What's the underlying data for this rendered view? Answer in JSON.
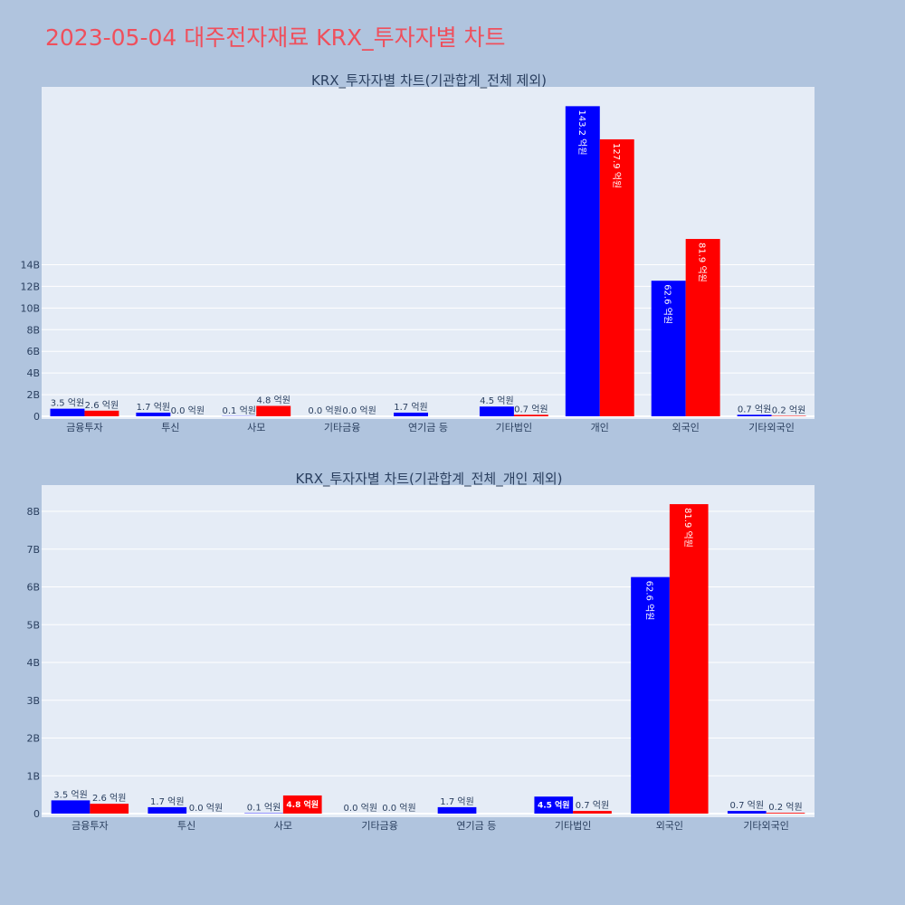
{
  "title": "2023-05-04 대주전자재료 KRX_투자자별 차트",
  "colors": {
    "buy": "#0000ff",
    "sell": "#ff0000",
    "background": "#b0c4de",
    "plot_bg": "#e5ecf6",
    "title": "#ef4f5c"
  },
  "chart_data": [
    {
      "type": "bar",
      "title": "KRX_투자자별 차트(기관합계_전체 제외)",
      "categories": [
        "금융투자",
        "투신",
        "사모",
        "기타금융",
        "연기금 등",
        "기타법인",
        "개인",
        "외국인",
        "기타외국인"
      ],
      "yticks": [
        "0",
        "2B",
        "4B",
        "6B",
        "8B",
        "10B",
        "12B",
        "14B"
      ],
      "ylim": [
        0,
        15
      ],
      "series": [
        {
          "color": "#0000ff",
          "values": [
            0.35,
            0.17,
            0.01,
            0.0,
            0.17,
            0.45,
            14.32,
            6.26,
            0.07
          ],
          "labels": [
            "3.5 억원",
            "1.7 억원",
            "0.1 억원",
            "0.0 억원",
            "1.7 억원",
            "4.5 억원",
            "143.2 억원",
            "62.6 억원",
            "0.7 억원"
          ]
        },
        {
          "color": "#ff0000",
          "values": [
            0.26,
            0.0,
            0.48,
            0.0,
            null,
            0.07,
            12.79,
            8.19,
            0.02
          ],
          "labels": [
            "2.6 억원",
            "0.0 억원",
            "4.8 억원",
            "0.0 억원",
            null,
            "0.7 억원",
            "127.9 억원",
            "81.9 억원",
            "0.2 억원"
          ]
        }
      ]
    },
    {
      "type": "bar",
      "title": "KRX_투자자별 차트(기관합계_전체_개인 제외)",
      "categories": [
        "금융투자",
        "투신",
        "사모",
        "기타금융",
        "연기금 등",
        "기타법인",
        "외국인",
        "기타외국인"
      ],
      "yticks": [
        "0",
        "1B",
        "2B",
        "3B",
        "4B",
        "5B",
        "6B",
        "7B",
        "8B"
      ],
      "ylim": [
        0,
        8.6
      ],
      "series": [
        {
          "color": "#0000ff",
          "values": [
            0.35,
            0.17,
            0.01,
            0.0,
            0.17,
            0.45,
            6.26,
            0.07
          ],
          "labels": [
            "3.5 억원",
            "1.7 억원",
            "0.1 억원",
            "0.0 억원",
            "1.7 억원",
            "4.5 억원",
            "62.6 억원",
            "0.7 억원"
          ]
        },
        {
          "color": "#ff0000",
          "values": [
            0.26,
            0.0,
            0.48,
            0.0,
            null,
            0.07,
            8.19,
            0.02
          ],
          "labels": [
            "2.6 억원",
            "0.0 억원",
            "4.8 억원",
            "0.0 억원",
            null,
            "0.7 억원",
            "81.9 억원",
            "0.2 억원"
          ]
        }
      ]
    }
  ]
}
